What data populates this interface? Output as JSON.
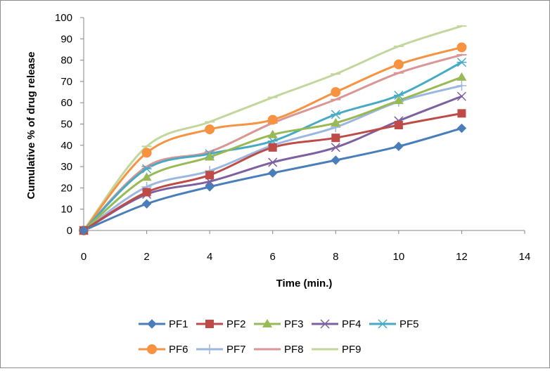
{
  "chart_data": {
    "type": "line",
    "title": "",
    "xlabel": "Time (min.)",
    "ylabel": "Cumulative % of drug release",
    "xlim": [
      0,
      14
    ],
    "ylim": [
      0,
      100
    ],
    "xticks": [
      0,
      2,
      4,
      6,
      8,
      10,
      12,
      14
    ],
    "yticks": [
      0,
      10,
      20,
      30,
      40,
      50,
      60,
      70,
      80,
      90,
      100
    ],
    "grid": false,
    "legend_position": "bottom",
    "x": [
      0,
      2,
      4,
      6,
      8,
      10,
      12
    ],
    "series": [
      {
        "name": "PF1",
        "color": "#4A7EBB",
        "marker": "diamond",
        "values": [
          0,
          12.5,
          20.5,
          27,
          33,
          39.5,
          48
        ]
      },
      {
        "name": "PF2",
        "color": "#BE4B48",
        "marker": "square",
        "values": [
          0,
          18,
          26,
          39,
          43.5,
          49.5,
          55
        ]
      },
      {
        "name": "PF3",
        "color": "#98B954",
        "marker": "triangle",
        "values": [
          0,
          25,
          34.5,
          45,
          50.5,
          61,
          72
        ]
      },
      {
        "name": "PF4",
        "color": "#7D60A0",
        "marker": "x",
        "values": [
          0,
          17,
          23,
          32,
          39,
          51.5,
          63
        ]
      },
      {
        "name": "PF5",
        "color": "#46AAC5",
        "marker": "star",
        "values": [
          0,
          29,
          36,
          42,
          54.5,
          63.5,
          79
        ]
      },
      {
        "name": "PF6",
        "color": "#F69240",
        "marker": "circle",
        "values": [
          0,
          36.5,
          47.5,
          52,
          65,
          78,
          86
        ]
      },
      {
        "name": "PF7",
        "color": "#9BB7E0",
        "marker": "plus",
        "values": [
          0,
          20.5,
          28,
          40,
          48.5,
          60.5,
          68
        ]
      },
      {
        "name": "PF8",
        "color": "#D99694",
        "marker": "dash",
        "values": [
          0,
          30,
          37,
          50.5,
          61.5,
          74,
          82.5
        ]
      },
      {
        "name": "PF9",
        "color": "#C3D69B",
        "marker": "dash",
        "values": [
          0,
          39.5,
          51,
          62.5,
          73.5,
          86.5,
          96
        ]
      }
    ]
  }
}
